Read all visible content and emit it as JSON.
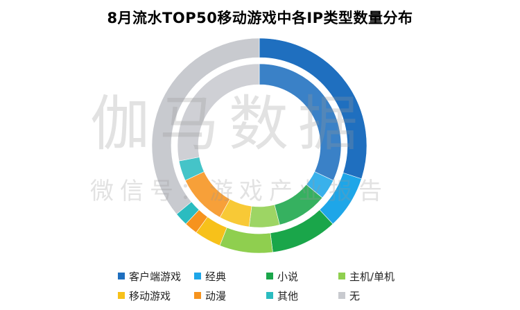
{
  "title": "8月流水TOP50移动游戏中各IP类型数量分布",
  "watermark": {
    "line1": "伽马数据",
    "line2": "微信号：游戏产业报告"
  },
  "chart_data": {
    "type": "donut",
    "title": "8月流水TOP50移动游戏中各IP类型数量分布",
    "categories": [
      "客户端游戏",
      "经典",
      "小说",
      "主机/单机",
      "移动游戏",
      "动漫",
      "其他",
      "无"
    ],
    "colors": [
      "#1f6fbf",
      "#1ea6e8",
      "#1aa64a",
      "#8fcf4f",
      "#f7c11a",
      "#f6931e",
      "#2bbcc0",
      "#c8cacf"
    ],
    "series": [
      {
        "ring": "outer",
        "values": [
          15,
          4,
          5,
          4,
          2,
          1,
          1,
          18
        ]
      },
      {
        "ring": "inner",
        "values": [
          16,
          2,
          5,
          3,
          3,
          5,
          2,
          14
        ]
      }
    ],
    "legend_position": "bottom"
  }
}
